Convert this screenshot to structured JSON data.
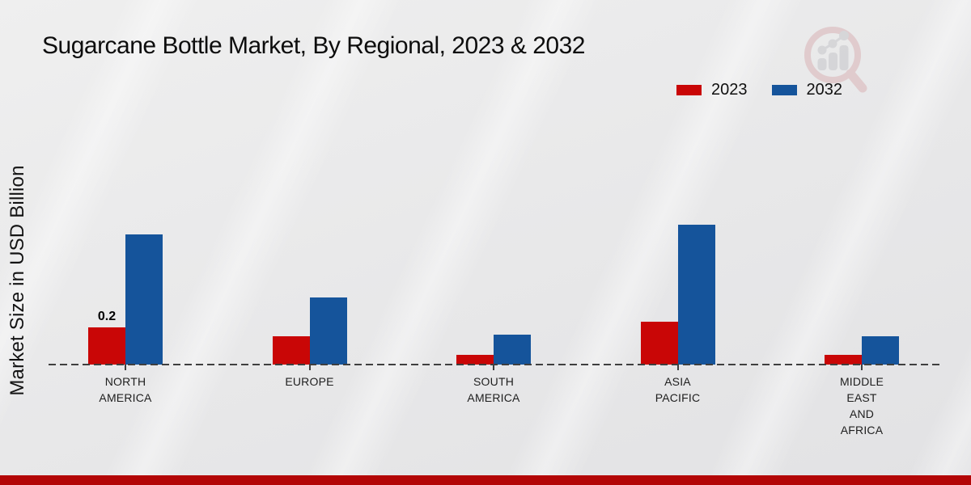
{
  "chart_data": {
    "type": "bar",
    "title": "Sugarcane Bottle Market, By Regional, 2023 & 2032",
    "ylabel": "Market Size in USD Billion",
    "xlabel": "",
    "unit": "USD Billion",
    "categories": [
      "NORTH AMERICA",
      "EUROPE",
      "SOUTH AMERICA",
      "ASIA PACIFIC",
      "MIDDLE EAST AND AFRICA"
    ],
    "category_lines": [
      [
        "NORTH",
        "AMERICA"
      ],
      [
        "EUROPE"
      ],
      [
        "SOUTH",
        "AMERICA"
      ],
      [
        "ASIA",
        "PACIFIC"
      ],
      [
        "MIDDLE",
        "EAST",
        "AND",
        "AFRICA"
      ]
    ],
    "series": [
      {
        "name": "2023",
        "color": "#c90606",
        "values": [
          0.2,
          0.15,
          0.05,
          0.23,
          0.05
        ]
      },
      {
        "name": "2032",
        "color": "#15549b",
        "values": [
          0.7,
          0.36,
          0.16,
          0.75,
          0.15
        ]
      }
    ],
    "point_labels": [
      {
        "series_index": 0,
        "category_index": 0,
        "text": "0.2"
      }
    ],
    "ylim": [
      0,
      0.8
    ],
    "grid": false,
    "legend_position": "top-right",
    "baseline_style": "dashed"
  },
  "colors": {
    "background": "#e9e9ea",
    "baseline": "#3f3f3f",
    "bottom_band": "#b30606",
    "title_text": "#0d0d0d"
  },
  "icons": {
    "watermark": "magnifier-growth-chart-logo"
  }
}
